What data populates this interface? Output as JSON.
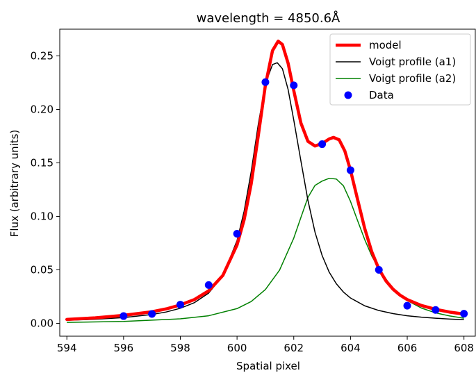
{
  "chart_data": {
    "type": "scatter",
    "title": "wavelength = 4850.6Å",
    "xlabel": "Spatial pixel",
    "ylabel": "Flux (arbitrary units)",
    "xlim": [
      593.75,
      608.4
    ],
    "ylim": [
      -0.012,
      0.275
    ],
    "xticks": [
      594,
      596,
      598,
      600,
      602,
      604,
      606,
      608
    ],
    "xtick_labels": [
      "594",
      "596",
      "598",
      "600",
      "602",
      "604",
      "606",
      "608"
    ],
    "yticks": [
      0.0,
      0.05,
      0.1,
      0.15,
      0.2,
      0.25
    ],
    "ytick_labels": [
      "0.00",
      "0.05",
      "0.10",
      "0.15",
      "0.20",
      "0.25"
    ],
    "grid": false,
    "legend_position": "top-right",
    "colors": {
      "model": "#ff0000",
      "a1": "#000000",
      "a2": "#008000",
      "data": "#0000ff"
    },
    "series": [
      {
        "name": "model",
        "kind": "line",
        "x": [
          594,
          595,
          596,
          597,
          597.5,
          598,
          598.5,
          599,
          599.5,
          600,
          600.25,
          600.5,
          600.75,
          601,
          601.25,
          601.45,
          601.6,
          601.8,
          602,
          602.25,
          602.5,
          602.75,
          603,
          603.25,
          603.4,
          603.6,
          603.8,
          604,
          604.25,
          604.5,
          604.75,
          605,
          605.25,
          605.5,
          605.75,
          606,
          606.5,
          607,
          607.5,
          608
        ],
        "y": [
          0.0037,
          0.0051,
          0.0075,
          0.0108,
          0.0135,
          0.0172,
          0.0223,
          0.0304,
          0.0448,
          0.0733,
          0.0969,
          0.1306,
          0.1757,
          0.2226,
          0.2549,
          0.2638,
          0.2606,
          0.2432,
          0.2176,
          0.1874,
          0.1701,
          0.1658,
          0.1681,
          0.1724,
          0.1738,
          0.1716,
          0.1611,
          0.1431,
          0.1158,
          0.0888,
          0.0669,
          0.0508,
          0.0397,
          0.0319,
          0.0263,
          0.0222,
          0.0167,
          0.0131,
          0.0105,
          0.0087
        ]
      },
      {
        "name": "Voigt profile (a1)",
        "kind": "line",
        "x": [
          594,
          595,
          596,
          597,
          597.5,
          598,
          598.5,
          599,
          599.5,
          600,
          600.25,
          600.5,
          600.75,
          601,
          601.25,
          601.42,
          601.6,
          601.8,
          602,
          602.25,
          602.5,
          602.75,
          603,
          603.25,
          603.5,
          603.75,
          604,
          604.5,
          605,
          605.5,
          606,
          606.5,
          607,
          607.5,
          608
        ],
        "y": [
          0.0029,
          0.0038,
          0.0054,
          0.0083,
          0.0106,
          0.0141,
          0.0194,
          0.0283,
          0.0445,
          0.0774,
          0.1048,
          0.142,
          0.1861,
          0.224,
          0.2419,
          0.2436,
          0.238,
          0.2187,
          0.19,
          0.152,
          0.1149,
          0.0851,
          0.0634,
          0.0478,
          0.037,
          0.0293,
          0.0237,
          0.0164,
          0.012,
          0.0091,
          0.0071,
          0.0058,
          0.0048,
          0.004,
          0.0034
        ]
      },
      {
        "name": "Voigt profile (a2)",
        "kind": "line",
        "x": [
          594,
          596,
          598,
          599,
          600,
          600.5,
          601,
          601.5,
          602,
          602.25,
          602.5,
          602.75,
          603,
          603.25,
          603.5,
          603.75,
          604,
          604.25,
          604.5,
          604.75,
          605,
          605.5,
          606,
          606.5,
          607,
          607.5,
          608
        ],
        "y": [
          0.0009,
          0.0018,
          0.0042,
          0.0071,
          0.0138,
          0.0204,
          0.0316,
          0.0498,
          0.0797,
          0.0989,
          0.1178,
          0.129,
          0.133,
          0.1356,
          0.1349,
          0.1286,
          0.114,
          0.096,
          0.0784,
          0.063,
          0.051,
          0.0321,
          0.0213,
          0.0143,
          0.0098,
          0.0069,
          0.0048
        ]
      },
      {
        "name": "Data",
        "kind": "scatter",
        "x": [
          596,
          597,
          598,
          599,
          600,
          601,
          602,
          603,
          604,
          605,
          606,
          607,
          608
        ],
        "y": [
          0.0068,
          0.0088,
          0.0175,
          0.0358,
          0.0838,
          0.2255,
          0.2225,
          0.1675,
          0.1432,
          0.05,
          0.0165,
          0.0125,
          0.009
        ]
      }
    ]
  }
}
